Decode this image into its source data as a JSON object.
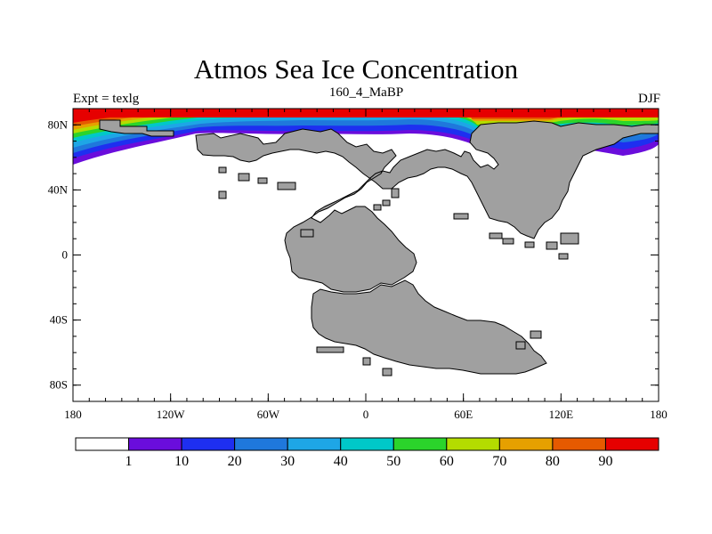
{
  "title": "Atmos Sea Ice Concentration",
  "left_label": "Expt = texlg",
  "center_label": "160_4_MaBP",
  "right_label": "DJF",
  "axes": {
    "lon_ticks": [
      {
        "lon": -180,
        "label": "180"
      },
      {
        "lon": -120,
        "label": "120W"
      },
      {
        "lon": -60,
        "label": "60W"
      },
      {
        "lon": 0,
        "label": "0"
      },
      {
        "lon": 60,
        "label": "60E"
      },
      {
        "lon": 120,
        "label": "120E"
      },
      {
        "lon": 180,
        "label": "180"
      }
    ],
    "lat_ticks": [
      {
        "lat": 80,
        "label": "80N"
      },
      {
        "lat": 40,
        "label": "40N"
      },
      {
        "lat": 0,
        "label": "0"
      },
      {
        "lat": -40,
        "label": "40S"
      },
      {
        "lat": -80,
        "label": "80S"
      }
    ],
    "lon_range": [
      -180,
      180
    ],
    "lat_range": [
      -90,
      90
    ]
  },
  "colorbar": {
    "colors": [
      "#ffffff",
      "#6a0ddc",
      "#1e2ff0",
      "#1f78dc",
      "#1ea6e6",
      "#00c8c8",
      "#2bd42b",
      "#b4dc00",
      "#e6a000",
      "#e65a00",
      "#e60000"
    ],
    "labels": [
      "1",
      "10",
      "20",
      "30",
      "40",
      "50",
      "60",
      "70",
      "80",
      "90"
    ]
  },
  "colors": {
    "land": "#a0a0a0",
    "ocean": "#ffffff"
  }
}
